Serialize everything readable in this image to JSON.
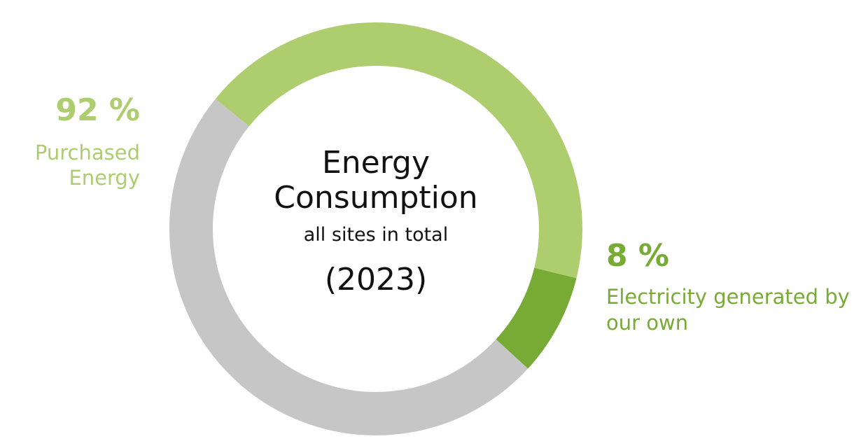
{
  "chart_data": {
    "type": "donut",
    "title": "Energy Consumption",
    "subtitle": "all sites in total",
    "period": "(2023)",
    "values": [
      43,
      8,
      49
    ],
    "colors": [
      "#adcd6e",
      "#78aa36",
      "#c6c6c6"
    ],
    "annotations": [
      {
        "label": "92 %",
        "text": "Purchased Energy",
        "color": "#adcd6e"
      },
      {
        "label": "8 %",
        "text": "Electricity generated by our own",
        "color": "#78aa36"
      }
    ]
  }
}
